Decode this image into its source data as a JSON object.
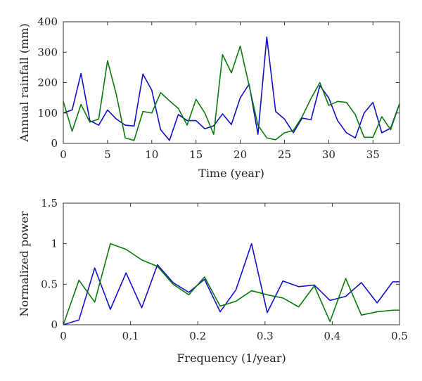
{
  "chart_data": [
    {
      "type": "line",
      "title": "",
      "xlabel": "Time (year)",
      "ylabel": "Annual rainfall (mm)",
      "xlim": [
        0,
        38
      ],
      "ylim": [
        0,
        400
      ],
      "xticks": [
        0,
        5,
        10,
        15,
        20,
        25,
        30,
        35
      ],
      "yticks": [
        0,
        100,
        200,
        300,
        400
      ],
      "xtick_labels": [
        "0",
        "5",
        "10",
        "15",
        "20",
        "25",
        "30",
        "35"
      ],
      "ytick_labels": [
        "0",
        "100",
        "200",
        "300",
        "400"
      ],
      "grid": false,
      "x": [
        0,
        1,
        2,
        3,
        4,
        5,
        6,
        7,
        8,
        9,
        10,
        11,
        12,
        13,
        14,
        15,
        16,
        17,
        18,
        19,
        20,
        21,
        22,
        23,
        24,
        25,
        26,
        27,
        28,
        29,
        30,
        31,
        32,
        33,
        34,
        35,
        36,
        37,
        38
      ],
      "series": [
        {
          "color": "#1010c8",
          "values": [
            100,
            110,
            230,
            75,
            60,
            110,
            80,
            60,
            57,
            228,
            175,
            45,
            10,
            95,
            75,
            75,
            48,
            58,
            97,
            62,
            150,
            195,
            30,
            350,
            105,
            80,
            35,
            83,
            78,
            190,
            150,
            75,
            35,
            18,
            100,
            135,
            35,
            50,
            130
          ]
        },
        {
          "color": "#0a7a0a",
          "values": [
            138,
            40,
            128,
            70,
            80,
            272,
            160,
            18,
            10,
            105,
            100,
            167,
            140,
            115,
            60,
            145,
            100,
            30,
            292,
            232,
            320,
            190,
            60,
            18,
            12,
            35,
            42,
            88,
            148,
            200,
            125,
            138,
            135,
            95,
            20,
            20,
            88,
            45,
            130
          ]
        }
      ]
    },
    {
      "type": "line",
      "title": "",
      "xlabel": "Frequency (1/year)",
      "ylabel": "Normalized power",
      "xlim": [
        0,
        0.5
      ],
      "ylim": [
        0,
        1.5
      ],
      "xticks": [
        0,
        0.1,
        0.2,
        0.3,
        0.4,
        0.5
      ],
      "yticks": [
        0,
        0.5,
        1,
        1.5
      ],
      "xtick_labels": [
        "0",
        "0.1",
        "0.2",
        "0.3",
        "0.4",
        "0.5"
      ],
      "ytick_labels": [
        "0",
        "0.5",
        "1",
        "1.5"
      ],
      "grid": false,
      "x": [
        0,
        0.0233,
        0.0467,
        0.07,
        0.0933,
        0.1167,
        0.14,
        0.1633,
        0.1867,
        0.21,
        0.2333,
        0.2567,
        0.28,
        0.3033,
        0.3267,
        0.35,
        0.3733,
        0.3967,
        0.42,
        0.4433,
        0.4667,
        0.49,
        0.5
      ],
      "series": [
        {
          "color": "#1010c8",
          "values": [
            0,
            0.06,
            0.7,
            0.19,
            0.64,
            0.21,
            0.74,
            0.52,
            0.4,
            0.56,
            0.16,
            0.43,
            1.0,
            0.15,
            0.54,
            0.47,
            0.49,
            0.3,
            0.35,
            0.52,
            0.27,
            0.53,
            0.53
          ]
        },
        {
          "color": "#0a7a0a",
          "values": [
            0,
            0.55,
            0.28,
            1.0,
            0.93,
            0.8,
            0.72,
            0.5,
            0.37,
            0.59,
            0.23,
            0.29,
            0.42,
            0.37,
            0.33,
            0.22,
            0.48,
            0.04,
            0.57,
            0.12,
            0.16,
            0.18,
            0.18
          ]
        }
      ]
    }
  ]
}
